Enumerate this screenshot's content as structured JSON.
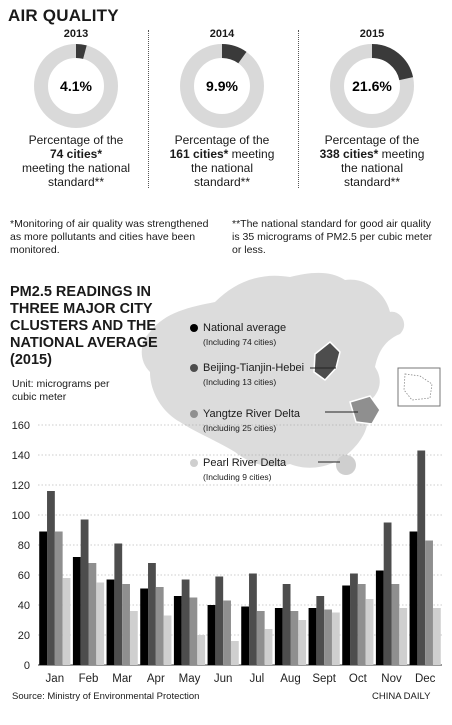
{
  "air_quality": {
    "title": "AIR QUALITY",
    "panels": [
      {
        "year": "2013",
        "percent": 4.1,
        "percent_label": "4.1%",
        "caption_pre": "Percentage of the",
        "cities": "74 cities*",
        "caption_post_inline": "",
        "caption_rest": "meeting the national standard**"
      },
      {
        "year": "2014",
        "percent": 9.9,
        "percent_label": "9.9%",
        "caption_pre": "Percentage of the",
        "cities": "161 cities*",
        "caption_post_inline": " meeting",
        "caption_rest": "the national standard**"
      },
      {
        "year": "2015",
        "percent": 21.6,
        "percent_label": "21.6%",
        "caption_pre": "Percentage of the",
        "cities": "338 cities*",
        "caption_post_inline": " meeting",
        "caption_rest": "the national standard**"
      }
    ],
    "note_monitoring": "*Monitoring of air quality was strengthened as more pollutants and cities have been monitored.",
    "note_standard": "**The national standard for good air quality is 35 micrograms of PM2.5 per cubic meter or less."
  },
  "pm_section": {
    "title": "PM2.5 READINGS IN THREE MAJOR CITY CLUSTERS AND THE NATIONAL AVERAGE (2015)",
    "unit": "Unit: micrograms per cubic meter"
  },
  "colors": {
    "National average": "#000000",
    "Beijing-Tianjin-Hebei": "#4d4d4d",
    "Yangtze River Delta": "#8f8f8f",
    "Pearl River Delta": "#cfcfcf",
    "map": "#dcdcdc"
  },
  "chart_data": {
    "type": "bar",
    "title": "PM2.5 READINGS IN THREE MAJOR CITY CLUSTERS AND THE NATIONAL AVERAGE (2015)",
    "ylabel": "Unit: micrograms per cubic meter",
    "xlabel": "",
    "ylim": [
      0,
      160
    ],
    "yticks": [
      0,
      20,
      40,
      60,
      80,
      100,
      120,
      140,
      160
    ],
    "grid": true,
    "legend_placement": "top-right",
    "categories": [
      "Jan",
      "Feb",
      "Mar",
      "Apr",
      "May",
      "Jun",
      "Jul",
      "Aug",
      "Sept",
      "Oct",
      "Nov",
      "Dec"
    ],
    "series": [
      {
        "name": "National average",
        "note": "(Including 74 cities)",
        "values": [
          89,
          72,
          57,
          51,
          46,
          40,
          39,
          38,
          38,
          53,
          63,
          89
        ]
      },
      {
        "name": "Beijing-Tianjin-Hebei",
        "note": "(Including 13 cities)",
        "values": [
          116,
          97,
          81,
          68,
          57,
          59,
          61,
          54,
          46,
          61,
          95,
          143
        ]
      },
      {
        "name": "Yangtze River Delta",
        "note": "(Including 25 cities)",
        "values": [
          89,
          68,
          54,
          52,
          45,
          43,
          36,
          36,
          37,
          54,
          54,
          83
        ]
      },
      {
        "name": "Pearl River Delta",
        "note": "(Including 9 cities)",
        "values": [
          58,
          55,
          36,
          33,
          20,
          16,
          24,
          30,
          35,
          44,
          38,
          38
        ]
      }
    ]
  },
  "footer": {
    "source": "Source: Ministry of Environmental Protection",
    "credit": "CHINA DAILY"
  }
}
